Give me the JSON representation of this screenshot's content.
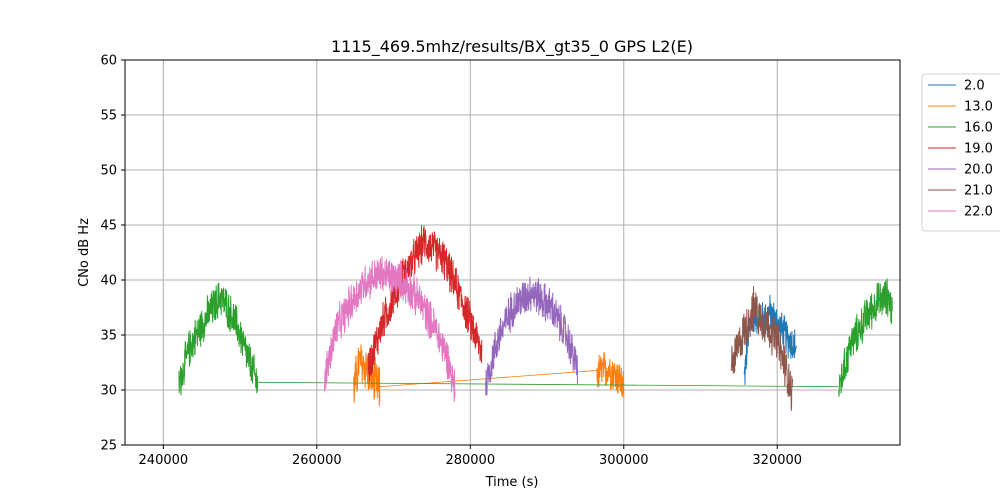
{
  "chart_data": {
    "type": "line",
    "title": "1115_469.5mhz/results/BX_gt35_0 GPS L2(E)",
    "xlabel": "Time (s)",
    "ylabel": "CNo dB Hz",
    "xlim": [
      235000,
      336000
    ],
    "ylim": [
      25,
      60
    ],
    "xticks": [
      240000,
      260000,
      280000,
      300000,
      320000
    ],
    "yticks": [
      25,
      30,
      35,
      40,
      45,
      50,
      55,
      60
    ],
    "grid": true,
    "legend_position": "outside-right",
    "series": [
      {
        "name": "2.0",
        "color": "#1f77b4",
        "segments": [
          {
            "points": [
              [
                315700,
                31.0
              ],
              [
                316300,
                35.5
              ],
              [
                317000,
                37.0
              ],
              [
                318000,
                36.3
              ],
              [
                319000,
                37.0
              ],
              [
                320000,
                36.0
              ],
              [
                321000,
                35.0
              ],
              [
                322500,
                33.8
              ]
            ],
            "noise": 2.0
          }
        ]
      },
      {
        "name": "13.0",
        "color": "#ff7f0e",
        "segments": [
          {
            "points": [
              [
                264800,
                30.0
              ],
              [
                265500,
                32.5
              ],
              [
                266500,
                32.0
              ],
              [
                267200,
                31.0
              ],
              [
                268200,
                30.0
              ]
            ],
            "noise": 2.5
          },
          {
            "points": [
              [
                268200,
                30.3
              ],
              [
                297000,
                31.8
              ]
            ],
            "noise": 0
          },
          {
            "points": [
              [
                296500,
                31.5
              ],
              [
                298000,
                32.0
              ],
              [
                299500,
                31.0
              ],
              [
                300000,
                30.0
              ]
            ],
            "noise": 2.0
          }
        ]
      },
      {
        "name": "16.0",
        "color": "#2ca02c",
        "segments": [
          {
            "points": [
              [
                242000,
                30.5
              ],
              [
                243500,
                34.0
              ],
              [
                245500,
                36.5
              ],
              [
                247500,
                38.5
              ],
              [
                249500,
                36.0
              ],
              [
                251000,
                33.0
              ],
              [
                252300,
                30.5
              ]
            ],
            "noise": 2.0
          },
          {
            "points": [
              [
                252300,
                30.7
              ],
              [
                328000,
                30.3
              ]
            ],
            "noise": 0
          },
          {
            "points": [
              [
                328000,
                30.0
              ],
              [
                329500,
                34.0
              ],
              [
                331500,
                36.5
              ],
              [
                333000,
                38.0
              ],
              [
                334500,
                38.5
              ],
              [
                335000,
                37.0
              ]
            ],
            "noise": 2.0
          }
        ]
      },
      {
        "name": "19.0",
        "color": "#d62728",
        "segments": [
          {
            "points": [
              [
                266700,
                32.0
              ],
              [
                268500,
                36.0
              ],
              [
                271000,
                40.0
              ],
              [
                274000,
                43.5
              ],
              [
                276500,
                42.0
              ],
              [
                279000,
                38.0
              ],
              [
                281500,
                33.5
              ]
            ],
            "noise": 2.0
          }
        ]
      },
      {
        "name": "20.0",
        "color": "#9467bd",
        "segments": [
          {
            "points": [
              [
                282000,
                30.5
              ],
              [
                283500,
                34.5
              ],
              [
                285500,
                37.5
              ],
              [
                288000,
                39.0
              ],
              [
                290500,
                37.5
              ],
              [
                292500,
                35.0
              ],
              [
                294000,
                32.0
              ]
            ],
            "noise": 2.0
          }
        ]
      },
      {
        "name": "21.0",
        "color": "#8c564b",
        "segments": [
          {
            "points": [
              [
                314000,
                32.0
              ],
              [
                315500,
                35.0
              ],
              [
                317000,
                37.5
              ],
              [
                318500,
                36.0
              ],
              [
                320000,
                34.5
              ],
              [
                321500,
                31.0
              ],
              [
                322000,
                29.5
              ]
            ],
            "noise": 2.2
          }
        ]
      },
      {
        "name": "22.0",
        "color": "#e377c2",
        "segments": [
          {
            "points": [
              [
                261000,
                31.0
              ],
              [
                262500,
                35.5
              ],
              [
                264500,
                38.0
              ],
              [
                266500,
                40.0
              ],
              [
                268500,
                40.5
              ],
              [
                271000,
                40.0
              ],
              [
                273500,
                38.0
              ],
              [
                275500,
                35.5
              ],
              [
                277000,
                33.0
              ],
              [
                278000,
                30.0
              ]
            ],
            "noise": 2.0
          }
        ]
      }
    ]
  }
}
